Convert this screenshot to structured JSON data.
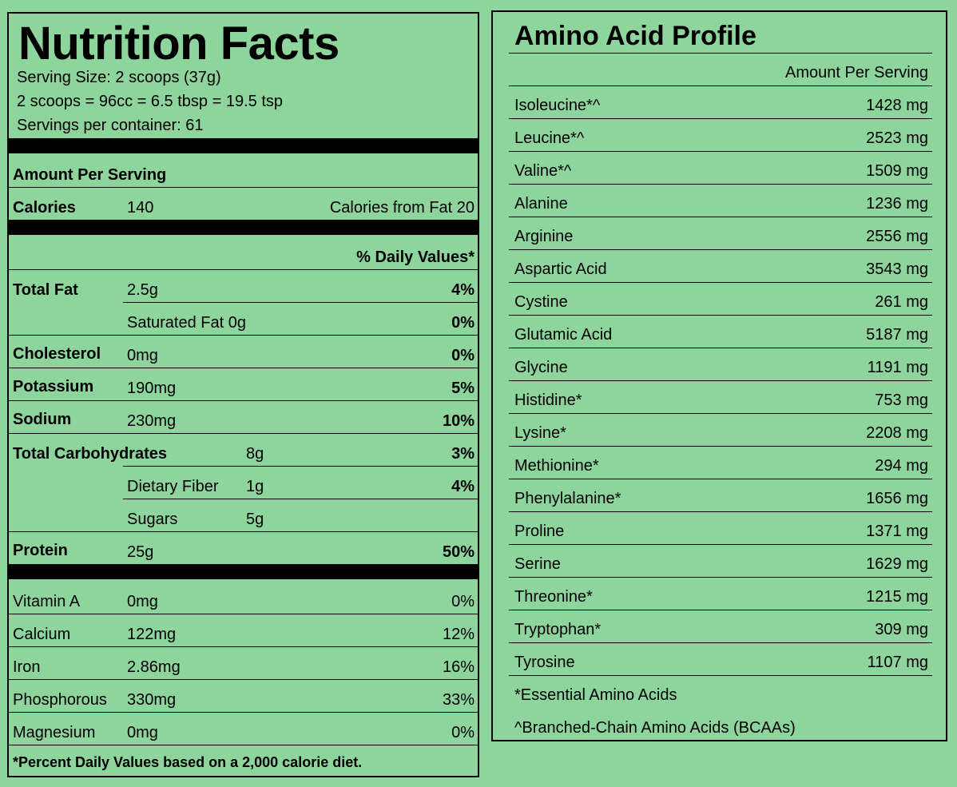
{
  "nutrition": {
    "title": "Nutrition Facts",
    "serving_size": "Serving Size: 2 scoops (37g)",
    "serving_equiv": "2 scoops = 96cc = 6.5 tbsp = 19.5 tsp",
    "servings_per_container": "Servings per container: 61",
    "amount_per_serving": "Amount Per Serving",
    "calories_label": "Calories",
    "calories_value": "140",
    "calories_from_fat": "Calories from Fat 20",
    "daily_values_header": "% Daily Values*",
    "nutrients": [
      {
        "name": "Total Fat",
        "amount": "2.5g",
        "dv": "4%"
      },
      {
        "name": "Saturated Fat 0g",
        "amount": "",
        "dv": "0%"
      },
      {
        "name": "Cholesterol",
        "amount": "0mg",
        "dv": "0%"
      },
      {
        "name": "Potassium",
        "amount": "190mg",
        "dv": "5%"
      },
      {
        "name": "Sodium",
        "amount": "230mg",
        "dv": "10%"
      },
      {
        "name": "Total Carbohydrates",
        "amount": "8g",
        "dv": "3%"
      },
      {
        "name": "Dietary Fiber",
        "amount": "1g",
        "dv": "4%"
      },
      {
        "name": "Sugars",
        "amount": "5g",
        "dv": ""
      },
      {
        "name": "Protein",
        "amount": "25g",
        "dv": "50%"
      }
    ],
    "vitamins": [
      {
        "name": "Vitamin A",
        "amount": "0mg",
        "dv": "0%"
      },
      {
        "name": "Calcium",
        "amount": "122mg",
        "dv": "12%"
      },
      {
        "name": "Iron",
        "amount": "2.86mg",
        "dv": "16%"
      },
      {
        "name": "Phosphorous",
        "amount": "330mg",
        "dv": "33%"
      },
      {
        "name": "Magnesium",
        "amount": "0mg",
        "dv": "0%"
      }
    ],
    "footnote": "*Percent Daily Values based on a 2,000 calorie diet."
  },
  "amino": {
    "title": "Amino Acid Profile",
    "header": "Amount Per Serving",
    "acids": [
      {
        "name": "Isoleucine*^",
        "amount": "1428 mg"
      },
      {
        "name": "Leucine*^",
        "amount": "2523 mg"
      },
      {
        "name": "Valine*^",
        "amount": "1509 mg"
      },
      {
        "name": "Alanine",
        "amount": "1236 mg"
      },
      {
        "name": "Arginine",
        "amount": "2556 mg"
      },
      {
        "name": "Aspartic Acid",
        "amount": "3543 mg"
      },
      {
        "name": "Cystine",
        "amount": "261 mg"
      },
      {
        "name": "Glutamic Acid",
        "amount": "5187 mg"
      },
      {
        "name": "Glycine",
        "amount": "1191 mg"
      },
      {
        "name": "Histidine*",
        "amount": "753 mg"
      },
      {
        "name": "Lysine*",
        "amount": "2208 mg"
      },
      {
        "name": "Methionine*",
        "amount": "294 mg"
      },
      {
        "name": "Phenylalanine*",
        "amount": "1656 mg"
      },
      {
        "name": "Proline",
        "amount": "1371 mg"
      },
      {
        "name": "Serine",
        "amount": "1629 mg"
      },
      {
        "name": "Threonine*",
        "amount": "1215 mg"
      },
      {
        "name": "Tryptophan*",
        "amount": "309 mg"
      },
      {
        "name": "Tyrosine",
        "amount": "1107 mg"
      }
    ],
    "note_essential": "*Essential Amino Acids",
    "note_bcaa": "^Branched-Chain Amino Acids (BCAAs)"
  }
}
